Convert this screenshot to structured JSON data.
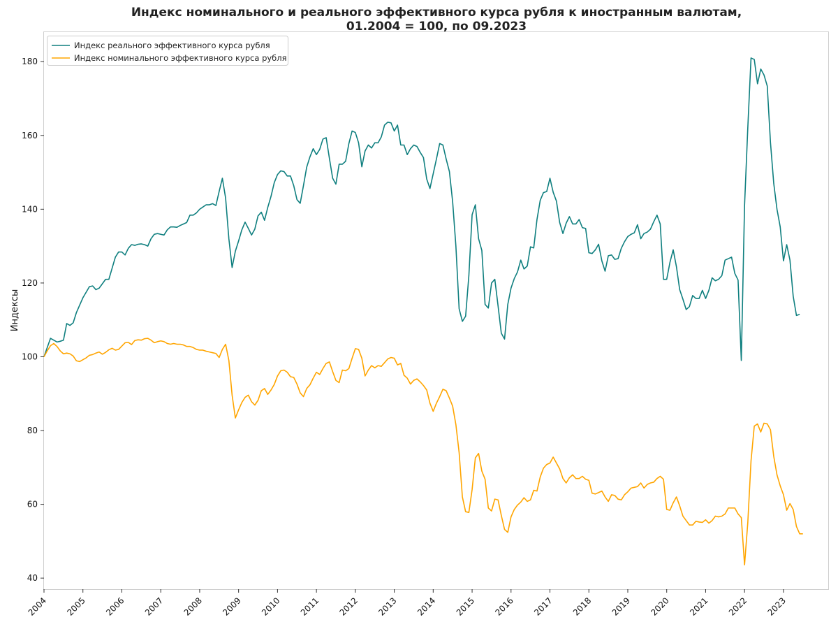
{
  "chart_data": {
    "type": "line",
    "title_line1": "Индекс номинального и реального эффективного курса рубля к иностранным валютам,",
    "title_line2": "01.2004 = 100, по 09.2023",
    "ylabel": "Индексы",
    "xlabel": "",
    "ylim": [
      37,
      188
    ],
    "yticks": [
      40,
      60,
      80,
      100,
      120,
      140,
      160,
      180
    ],
    "xticks": [
      "2004",
      "2005",
      "2006",
      "2007",
      "2008",
      "2009",
      "2010",
      "2011",
      "2012",
      "2013",
      "2014",
      "2015",
      "2016",
      "2017",
      "2018",
      "2019",
      "2020",
      "2021",
      "2022",
      "2023"
    ],
    "x_start": "2004-01",
    "x_step": "month",
    "grid": false,
    "legend_position": "upper-left",
    "series": [
      {
        "name": "Индекс реального эффективного курса рубля",
        "color": "#0f7f7f",
        "values": [
          100,
          102.5,
          105,
          104.5,
          104,
          104.2,
          104.5,
          109,
          108.5,
          109.2,
          112,
          114,
          116,
          117.5,
          119,
          119.2,
          118.2,
          118.6,
          119.8,
          121,
          121,
          124,
          127,
          128.4,
          128.4,
          127.6,
          129.4,
          130.4,
          130.2,
          130.5,
          130.6,
          130.4,
          130,
          132,
          133.2,
          133.4,
          133.2,
          133,
          134.4,
          135.2,
          135.2,
          135.1,
          135.6,
          136,
          136.4,
          138.4,
          138.4,
          139,
          140,
          140.6,
          141.2,
          141.2,
          141.5,
          141,
          144.8,
          148.4,
          143,
          132,
          124.2,
          128.6,
          131.4,
          134.4,
          136.5,
          134.8,
          133,
          134.6,
          138.2,
          139.2,
          137,
          140.5,
          143.5,
          147.2,
          149.4,
          150.4,
          150.2,
          149,
          149,
          146.4,
          142.6,
          141.6,
          146.4,
          151.4,
          154.2,
          156.4,
          154.8,
          156.2,
          159,
          159.4,
          153.8,
          148.4,
          146.8,
          152.2,
          152.2,
          153,
          157.8,
          161.2,
          160.8,
          158,
          151.5,
          155.8,
          157.4,
          156.6,
          158,
          158,
          159.6,
          162.8,
          163.6,
          163.4,
          161.2,
          162.8,
          157.4,
          157.4,
          154.8,
          156.4,
          157.4,
          157,
          155.4,
          154,
          148.2,
          145.6,
          149.6,
          153.6,
          157.8,
          157.4,
          153.6,
          150.2,
          142,
          130,
          113,
          109.6,
          111,
          122,
          138.5,
          141.2,
          132,
          128.8,
          114.2,
          113.2,
          120,
          121,
          113.8,
          106.4,
          104.8,
          114.2,
          118.6,
          121.2,
          123,
          126.2,
          123.8,
          124.6,
          129.8,
          129.5,
          137.2,
          142.4,
          144.5,
          144.8,
          148.4,
          144.6,
          142.2,
          136.4,
          133.4,
          136.2,
          138,
          136,
          136,
          137.2,
          135,
          134.8,
          128.2,
          128,
          129,
          130.5,
          126,
          123.2,
          127.4,
          127.6,
          126.4,
          126.6,
          129.4,
          131.2,
          132.6,
          133.2,
          133.6,
          135.8,
          132,
          133.4,
          133.8,
          134.6,
          136.6,
          138.4,
          136,
          121,
          121,
          125.6,
          129,
          124.4,
          118.2,
          115.6,
          112.8,
          113.6,
          116.6,
          115.8,
          115.8,
          118,
          115.8,
          118,
          121.4,
          120.6,
          121,
          122,
          126.2,
          126.6,
          127,
          122.6,
          120.8,
          99,
          141,
          162,
          181,
          180.6,
          174,
          178,
          176.4,
          173.4,
          158,
          147,
          140,
          135.2,
          126,
          130.4,
          126.2,
          116.4,
          111.2,
          111.5
        ]
      },
      {
        "name": "Индекс номинального эффективного курса рубля",
        "color": "#ffa500",
        "values": [
          100,
          101.6,
          103,
          103.6,
          102.8,
          101.6,
          100.8,
          101,
          100.8,
          100.2,
          98.9,
          98.7,
          99.2,
          99.7,
          100.4,
          100.6,
          101,
          101.3,
          100.7,
          101.2,
          101.9,
          102.3,
          101.8,
          102,
          102.9,
          103.8,
          103.9,
          103.3,
          104.4,
          104.6,
          104.5,
          104.9,
          105,
          104.5,
          103.8,
          104.1,
          104.3,
          104.1,
          103.6,
          103.4,
          103.6,
          103.4,
          103.4,
          103.2,
          102.8,
          102.8,
          102.5,
          102,
          101.8,
          101.8,
          101.5,
          101.3,
          101.1,
          100.9,
          99.8,
          102,
          103.4,
          99,
          89.6,
          83.4,
          85.6,
          87.6,
          89,
          89.6,
          87.8,
          86.9,
          88.2,
          90.8,
          91.4,
          89.8,
          91,
          92.5,
          94.8,
          96.2,
          96.4,
          95.8,
          94.6,
          94.4,
          92.6,
          90.2,
          89.2,
          91.4,
          92.4,
          94.2,
          95.8,
          95.2,
          96.8,
          98.2,
          98.6,
          96,
          93.6,
          93,
          96.4,
          96.2,
          96.8,
          99.6,
          102.2,
          102,
          99.6,
          94.8,
          96.4,
          97.6,
          97,
          97.6,
          97.4,
          98.4,
          99.4,
          99.8,
          99.6,
          97.8,
          98.2,
          95,
          94.2,
          92.6,
          93.6,
          94,
          93.2,
          92.2,
          91,
          87.4,
          85.2,
          87.4,
          89.2,
          91.2,
          90.8,
          88.8,
          86.6,
          81.6,
          74,
          62,
          58,
          57.8,
          64,
          72.6,
          73.8,
          69,
          66.8,
          59,
          58.2,
          61.4,
          61.2,
          57,
          53.2,
          52.4,
          56.6,
          58.6,
          59.8,
          60.6,
          61.8,
          60.8,
          61.2,
          63.8,
          63.6,
          67.4,
          69.8,
          70.8,
          71.2,
          72.8,
          71.2,
          69.6,
          67,
          65.8,
          67.2,
          68,
          67,
          67,
          67.6,
          66.8,
          66.5,
          63,
          62.8,
          63.2,
          63.6,
          62,
          60.8,
          62.6,
          62.4,
          61.4,
          61.2,
          62.6,
          63.4,
          64.4,
          64.6,
          64.8,
          65.8,
          64.4,
          65.4,
          65.8,
          66,
          67,
          67.6,
          66.8,
          58.6,
          58.4,
          60.4,
          62,
          59.6,
          56.8,
          55.6,
          54.4,
          54.4,
          55.4,
          55.2,
          55.1,
          55.8,
          54.9,
          55.6,
          56.8,
          56.6,
          56.8,
          57.4,
          59,
          59,
          59,
          57.4,
          56.4,
          43.6,
          55,
          71.8,
          81.2,
          81.8,
          79.6,
          82,
          81.8,
          80.2,
          73,
          68,
          65,
          62.6,
          58.4,
          60.2,
          58.6,
          54,
          52,
          52
        ]
      }
    ]
  }
}
